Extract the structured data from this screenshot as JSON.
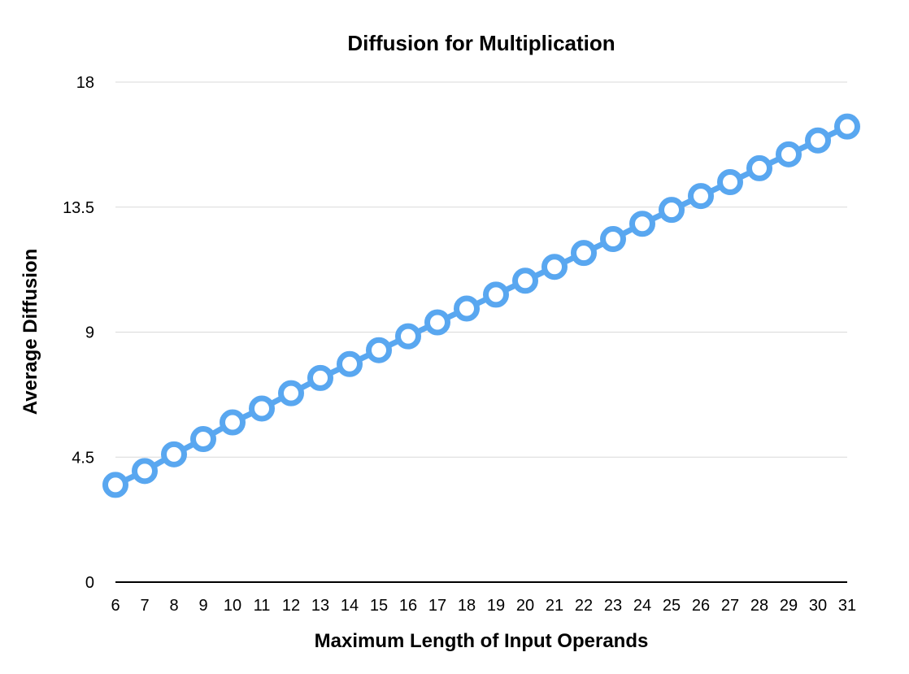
{
  "chart_data": {
    "type": "line",
    "title": "Diffusion for Multiplication",
    "xlabel": "Maximum Length of Input Operands",
    "ylabel": "Average Diffusion",
    "x": [
      6,
      7,
      8,
      9,
      10,
      11,
      12,
      13,
      14,
      15,
      16,
      17,
      18,
      19,
      20,
      21,
      22,
      23,
      24,
      25,
      26,
      27,
      28,
      29,
      30,
      31
    ],
    "x_tick_labels": [
      "6",
      "7",
      "8",
      "9",
      "10",
      "11",
      "12",
      "13",
      "14",
      "15",
      "16",
      "17",
      "18",
      "19",
      "20",
      "21",
      "22",
      "23",
      "24",
      "25",
      "26",
      "27",
      "28",
      "29",
      "30",
      "31"
    ],
    "y_ticks": [
      0,
      4.5,
      9,
      13.5,
      18
    ],
    "y_tick_labels": [
      "0",
      "4.5",
      "9",
      "13.5",
      "18"
    ],
    "ylim": [
      0,
      18
    ],
    "grid": true,
    "legend": "none",
    "series": [
      {
        "color": "#59a7f0",
        "marker_fill": "#ffffff",
        "values": [
          3.5,
          4.0,
          4.6,
          5.15,
          5.75,
          6.25,
          6.8,
          7.35,
          7.85,
          8.35,
          8.85,
          9.35,
          9.85,
          10.35,
          10.85,
          11.35,
          11.85,
          12.35,
          12.9,
          13.4,
          13.9,
          14.4,
          14.9,
          15.4,
          15.9,
          16.4
        ]
      }
    ]
  }
}
